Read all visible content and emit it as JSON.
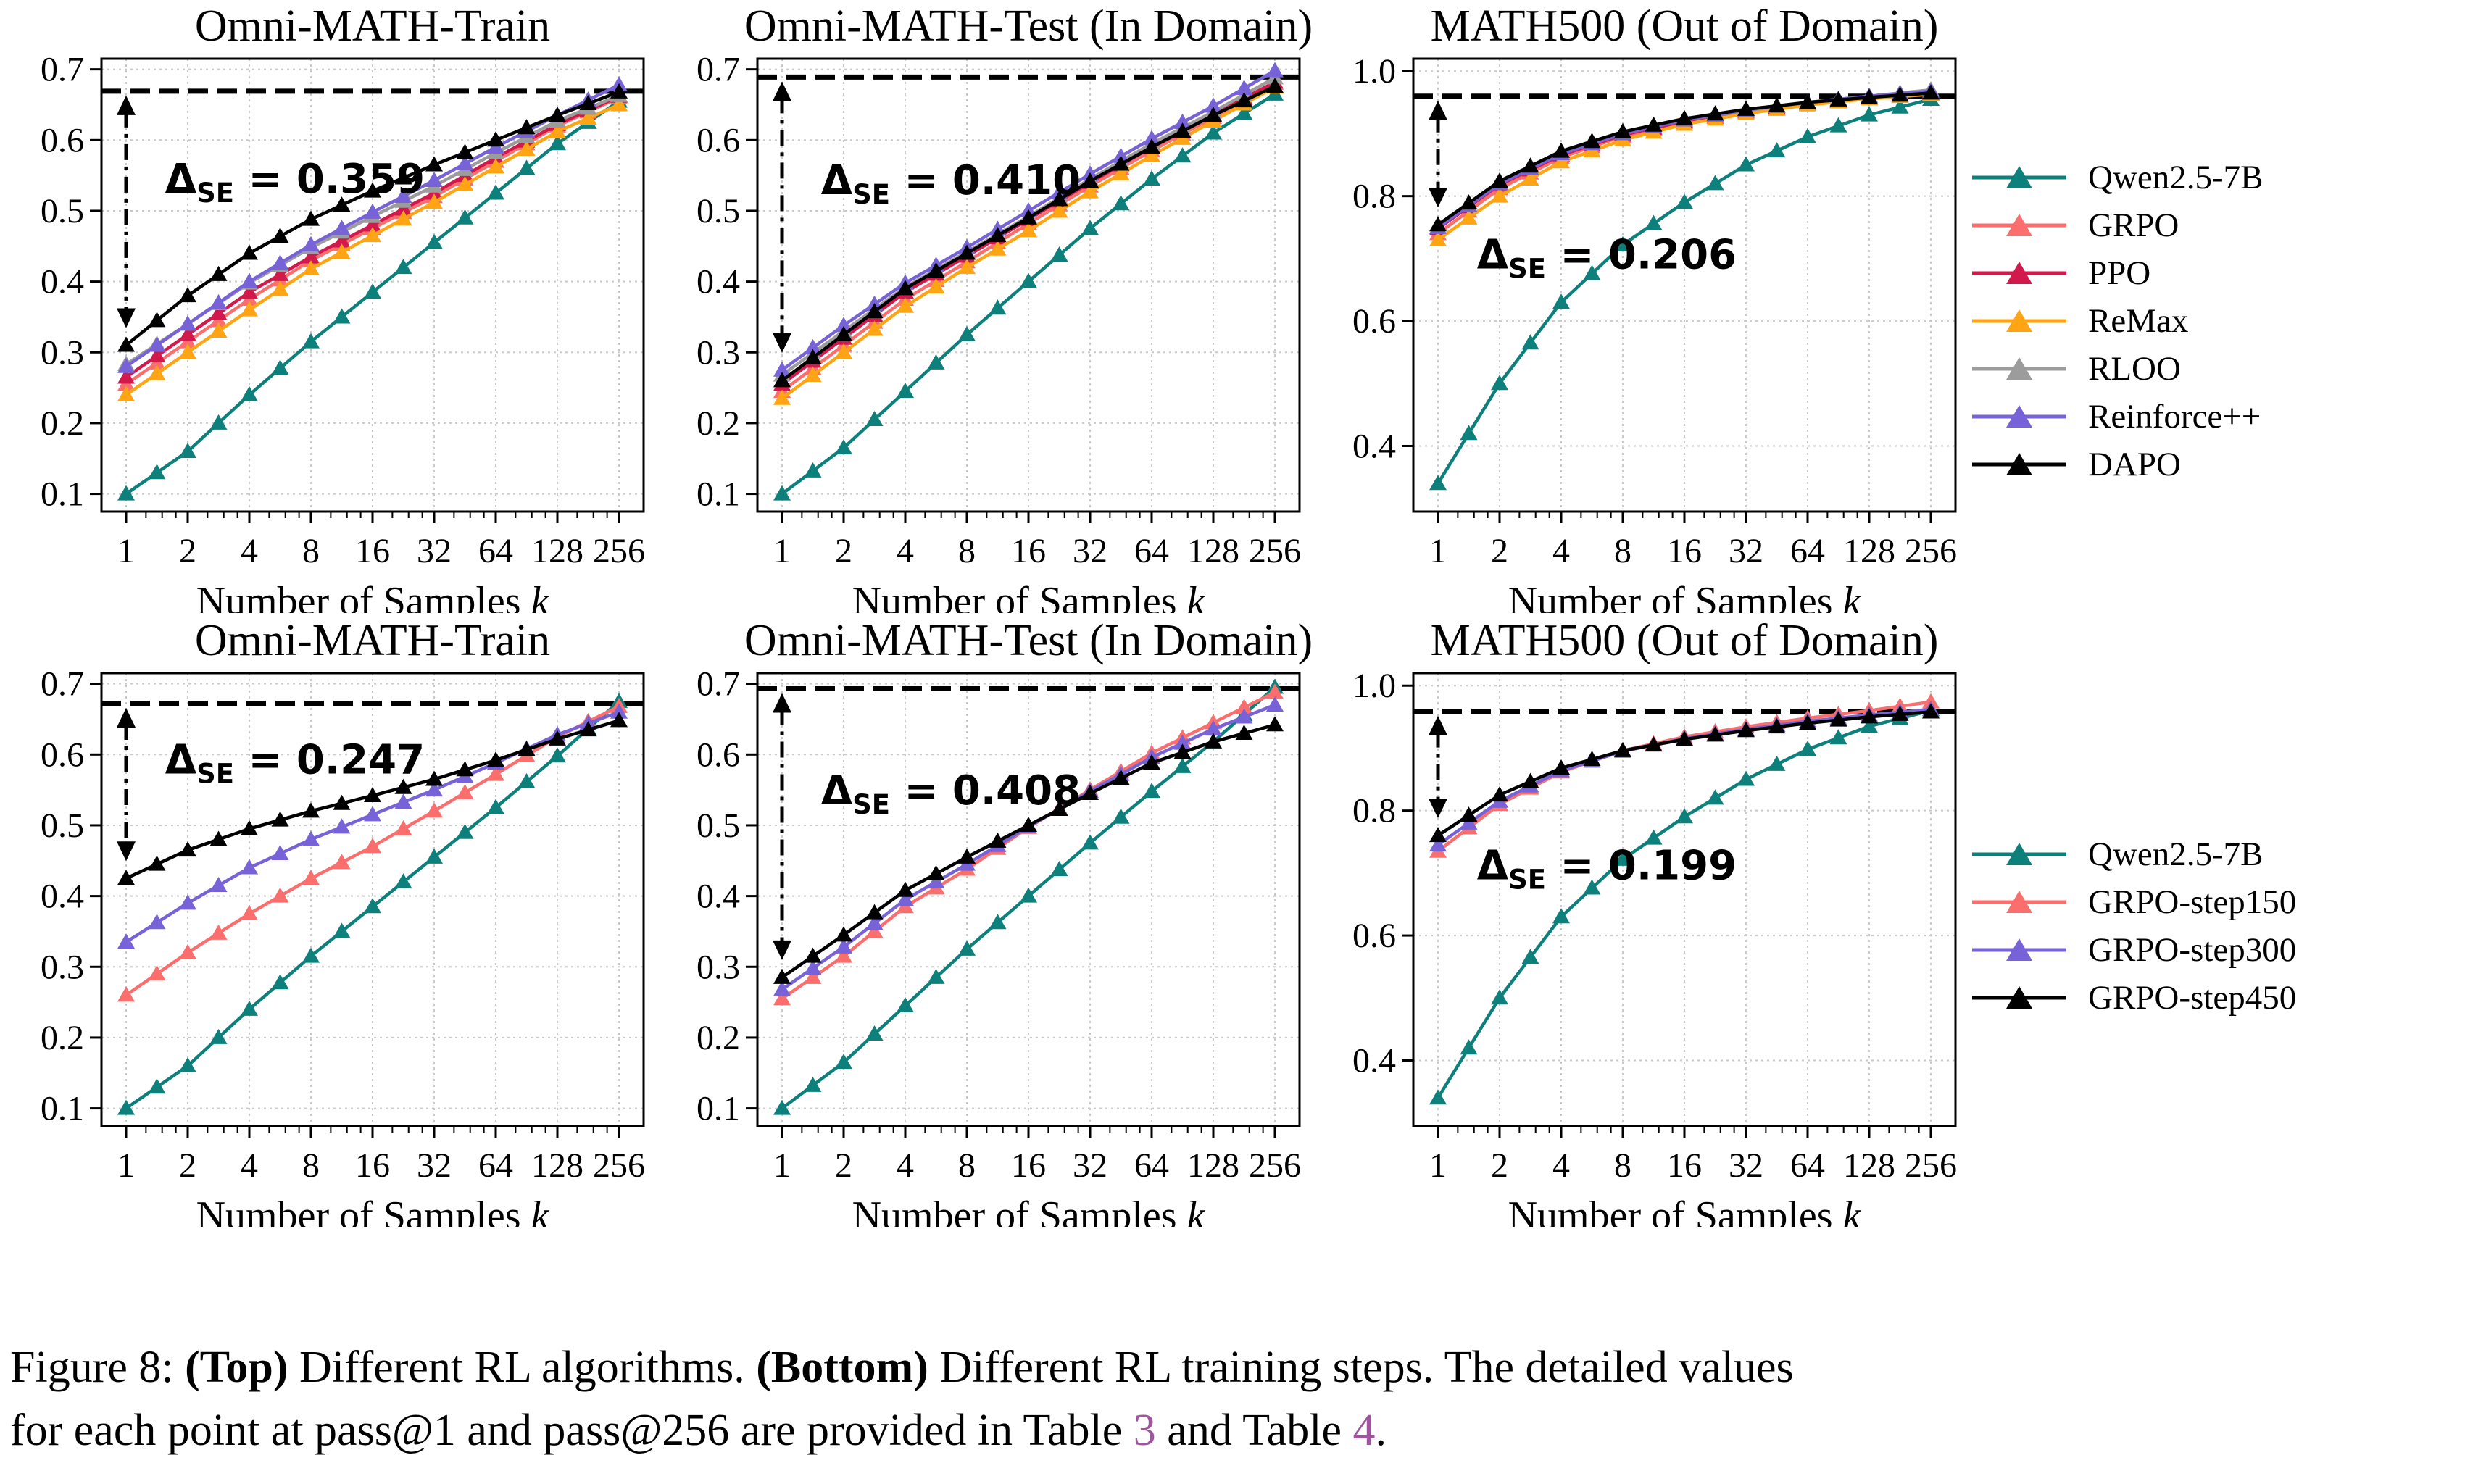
{
  "figure": {
    "x_axis": {
      "label": "Number of Samples",
      "label_var": "k",
      "tick_labels": [
        "1",
        "2",
        "4",
        "8",
        "16",
        "32",
        "64",
        "128",
        "256"
      ]
    },
    "legend_top": [
      "Qwen2.5-7B",
      "GRPO",
      "PPO",
      "ReMax",
      "RLOO",
      "Reinforce++",
      "DAPO"
    ],
    "legend_bottom": [
      "Qwen2.5-7B",
      "GRPO-step150",
      "GRPO-step300",
      "GRPO-step450"
    ],
    "palette": {
      "Qwen2.5-7B": "#0e807c",
      "GRPO": "#fa6e6e",
      "PPO": "#d2194b",
      "ReMax": "#ffa414",
      "RLOO": "#9c9c9c",
      "Reinforce++": "#7862d8",
      "DAPO": "#000000",
      "GRPO-step150": "#fa6e6e",
      "GRPO-step300": "#7862d8",
      "GRPO-step450": "#000000"
    },
    "colors": {
      "grid": "#c9c9c9",
      "axis": "#000000",
      "supremum_line": "#000000",
      "delta_text": "#000000",
      "table_link": "#a0549f"
    },
    "caption": {
      "line1": [
        {
          "t": "Figure 8: "
        },
        {
          "t": "(Top)",
          "b": true
        },
        {
          "t": " Different RL algorithms. "
        },
        {
          "t": "(Bottom)",
          "b": true
        },
        {
          "t": " Different RL training steps. The detailed values"
        }
      ],
      "line2": [
        {
          "t": "for each point at pass@1 and pass@256 are provided in Table "
        },
        {
          "t": "3",
          "link": true
        },
        {
          "t": " and Table "
        },
        {
          "t": "4",
          "link": true
        },
        {
          "t": "."
        }
      ]
    }
  },
  "chart_data": [
    {
      "id": "top-omni-math-train",
      "type": "line",
      "title": "Omni-MATH-Train",
      "x_scale": "log2",
      "x": [
        1,
        2,
        4,
        8,
        16,
        32,
        64,
        128,
        256
      ],
      "ylim": [
        0.075,
        0.715
      ],
      "y_ticks": [
        "0.1",
        "0.2",
        "0.3",
        "0.4",
        "0.5",
        "0.6",
        "0.7"
      ],
      "hline": 0.669,
      "delta": {
        "sym": "Δ",
        "sub": "SE",
        "value": "0.359"
      },
      "series": [
        {
          "name": "Qwen2.5-7B",
          "values": [
            0.1,
            0.16,
            0.24,
            0.315,
            0.385,
            0.455,
            0.525,
            0.595,
            0.655
          ]
        },
        {
          "name": "GRPO",
          "values": [
            0.255,
            0.315,
            0.375,
            0.43,
            0.475,
            0.52,
            0.57,
            0.62,
            0.66
          ]
        },
        {
          "name": "PPO",
          "values": [
            0.265,
            0.325,
            0.385,
            0.435,
            0.48,
            0.525,
            0.575,
            0.622,
            0.662
          ]
        },
        {
          "name": "ReMax",
          "values": [
            0.24,
            0.3,
            0.36,
            0.418,
            0.465,
            0.512,
            0.562,
            0.612,
            0.65
          ]
        },
        {
          "name": "RLOO",
          "values": [
            0.283,
            0.34,
            0.398,
            0.448,
            0.492,
            0.535,
            0.582,
            0.627,
            0.663
          ]
        },
        {
          "name": "Reinforce++",
          "values": [
            0.28,
            0.34,
            0.4,
            0.452,
            0.498,
            0.543,
            0.59,
            0.635,
            0.678
          ]
        },
        {
          "name": "DAPO",
          "values": [
            0.31,
            0.38,
            0.44,
            0.488,
            0.528,
            0.565,
            0.6,
            0.635,
            0.668
          ]
        }
      ]
    },
    {
      "id": "top-omni-math-test",
      "type": "line",
      "title": "Omni-MATH-Test (In Domain)",
      "x_scale": "log2",
      "x": [
        1,
        2,
        4,
        8,
        16,
        32,
        64,
        128,
        256
      ],
      "ylim": [
        0.075,
        0.715
      ],
      "y_ticks": [
        "0.1",
        "0.2",
        "0.3",
        "0.4",
        "0.5",
        "0.6",
        "0.7"
      ],
      "hline": 0.689,
      "delta": {
        "sym": "Δ",
        "sub": "SE",
        "value": "0.410"
      },
      "series": [
        {
          "name": "Qwen2.5-7B",
          "values": [
            0.1,
            0.165,
            0.245,
            0.325,
            0.4,
            0.475,
            0.545,
            0.61,
            0.665
          ]
        },
        {
          "name": "GRPO",
          "values": [
            0.245,
            0.31,
            0.375,
            0.428,
            0.482,
            0.535,
            0.585,
            0.632,
            0.68
          ]
        },
        {
          "name": "PPO",
          "values": [
            0.255,
            0.32,
            0.385,
            0.436,
            0.488,
            0.54,
            0.59,
            0.636,
            0.682
          ]
        },
        {
          "name": "ReMax",
          "values": [
            0.235,
            0.3,
            0.365,
            0.42,
            0.472,
            0.527,
            0.578,
            0.627,
            0.675
          ]
        },
        {
          "name": "RLOO",
          "values": [
            0.268,
            0.33,
            0.392,
            0.442,
            0.492,
            0.545,
            0.595,
            0.64,
            0.688
          ]
        },
        {
          "name": "Reinforce++",
          "values": [
            0.275,
            0.338,
            0.398,
            0.448,
            0.5,
            0.552,
            0.602,
            0.648,
            0.698
          ]
        },
        {
          "name": "DAPO",
          "values": [
            0.26,
            0.325,
            0.39,
            0.44,
            0.49,
            0.542,
            0.59,
            0.635,
            0.676
          ]
        }
      ]
    },
    {
      "id": "top-math500",
      "type": "line",
      "title": "MATH500 (Out of Domain)",
      "x_scale": "log2",
      "x": [
        1,
        2,
        4,
        8,
        16,
        32,
        64,
        128,
        256
      ],
      "ylim": [
        0.295,
        1.02
      ],
      "y_ticks": [
        "0.4",
        "0.6",
        "0.8",
        "1.0"
      ],
      "hline": 0.96,
      "delta": {
        "sym": "Δ",
        "sub": "SE",
        "value": "0.206"
      },
      "series": [
        {
          "name": "Qwen2.5-7B",
          "values": [
            0.34,
            0.5,
            0.63,
            0.722,
            0.79,
            0.85,
            0.895,
            0.93,
            0.955
          ]
        },
        {
          "name": "GRPO",
          "values": [
            0.74,
            0.812,
            0.862,
            0.896,
            0.918,
            0.934,
            0.947,
            0.956,
            0.964
          ]
        },
        {
          "name": "PPO",
          "values": [
            0.748,
            0.818,
            0.866,
            0.898,
            0.92,
            0.936,
            0.948,
            0.957,
            0.966
          ]
        },
        {
          "name": "ReMax",
          "values": [
            0.73,
            0.8,
            0.855,
            0.89,
            0.915,
            0.932,
            0.946,
            0.956,
            0.963
          ]
        },
        {
          "name": "RLOO",
          "values": [
            0.75,
            0.82,
            0.868,
            0.9,
            0.922,
            0.937,
            0.95,
            0.96,
            0.97
          ]
        },
        {
          "name": "Reinforce++",
          "values": [
            0.75,
            0.82,
            0.868,
            0.9,
            0.922,
            0.938,
            0.95,
            0.96,
            0.968
          ]
        },
        {
          "name": "DAPO",
          "values": [
            0.754,
            0.824,
            0.872,
            0.903,
            0.924,
            0.939,
            0.95,
            0.958,
            0.965
          ]
        }
      ]
    },
    {
      "id": "bottom-omni-math-train",
      "type": "line",
      "title": "Omni-MATH-Train",
      "x_scale": "log2",
      "x": [
        1,
        2,
        4,
        8,
        16,
        32,
        64,
        128,
        256
      ],
      "ylim": [
        0.075,
        0.715
      ],
      "y_ticks": [
        "0.1",
        "0.2",
        "0.3",
        "0.4",
        "0.5",
        "0.6",
        "0.7"
      ],
      "hline": 0.672,
      "delta": {
        "sym": "Δ",
        "sub": "SE",
        "value": "0.247"
      },
      "series": [
        {
          "name": "Qwen2.5-7B",
          "values": [
            0.1,
            0.16,
            0.24,
            0.315,
            0.385,
            0.455,
            0.525,
            0.598,
            0.675
          ]
        },
        {
          "name": "GRPO-step150",
          "values": [
            0.26,
            0.32,
            0.375,
            0.425,
            0.47,
            0.52,
            0.572,
            0.625,
            0.668
          ]
        },
        {
          "name": "GRPO-step300",
          "values": [
            0.335,
            0.39,
            0.44,
            0.48,
            0.515,
            0.55,
            0.588,
            0.628,
            0.66
          ]
        },
        {
          "name": "GRPO-step450",
          "values": [
            0.425,
            0.465,
            0.495,
            0.52,
            0.542,
            0.565,
            0.592,
            0.622,
            0.648
          ]
        }
      ]
    },
    {
      "id": "bottom-omni-math-test",
      "type": "line",
      "title": "Omni-MATH-Test (In Domain)",
      "x_scale": "log2",
      "x": [
        1,
        2,
        4,
        8,
        16,
        32,
        64,
        128,
        256
      ],
      "ylim": [
        0.075,
        0.715
      ],
      "y_ticks": [
        "0.1",
        "0.2",
        "0.3",
        "0.4",
        "0.5",
        "0.6",
        "0.7"
      ],
      "hline": 0.693,
      "delta": {
        "sym": "Δ",
        "sub": "SE",
        "value": "0.408"
      },
      "series": [
        {
          "name": "Qwen2.5-7B",
          "values": [
            0.1,
            0.165,
            0.245,
            0.325,
            0.4,
            0.475,
            0.548,
            0.618,
            0.695
          ]
        },
        {
          "name": "GRPO-step150",
          "values": [
            0.255,
            0.315,
            0.385,
            0.438,
            0.497,
            0.55,
            0.602,
            0.645,
            0.688
          ]
        },
        {
          "name": "GRPO-step300",
          "values": [
            0.268,
            0.328,
            0.395,
            0.445,
            0.498,
            0.548,
            0.596,
            0.636,
            0.67
          ]
        },
        {
          "name": "GRPO-step450",
          "values": [
            0.285,
            0.345,
            0.408,
            0.455,
            0.5,
            0.545,
            0.588,
            0.618,
            0.642
          ]
        }
      ]
    },
    {
      "id": "bottom-math500",
      "type": "line",
      "title": "MATH500 (Out of Domain)",
      "x_scale": "log2",
      "x": [
        1,
        2,
        4,
        8,
        16,
        32,
        64,
        128,
        256
      ],
      "ylim": [
        0.295,
        1.02
      ],
      "y_ticks": [
        "0.4",
        "0.6",
        "0.8",
        "1.0"
      ],
      "hline": 0.959,
      "delta": {
        "sym": "Δ",
        "sub": "SE",
        "value": "0.199"
      },
      "series": [
        {
          "name": "Qwen2.5-7B",
          "values": [
            0.34,
            0.5,
            0.63,
            0.722,
            0.79,
            0.85,
            0.898,
            0.935,
            0.96
          ]
        },
        {
          "name": "GRPO-step150",
          "values": [
            0.735,
            0.81,
            0.862,
            0.896,
            0.918,
            0.934,
            0.948,
            0.96,
            0.974
          ]
        },
        {
          "name": "GRPO-step300",
          "values": [
            0.745,
            0.815,
            0.864,
            0.895,
            0.915,
            0.93,
            0.943,
            0.953,
            0.962
          ]
        },
        {
          "name": "GRPO-step450",
          "values": [
            0.76,
            0.825,
            0.868,
            0.896,
            0.914,
            0.928,
            0.94,
            0.95,
            0.958
          ]
        }
      ]
    }
  ]
}
